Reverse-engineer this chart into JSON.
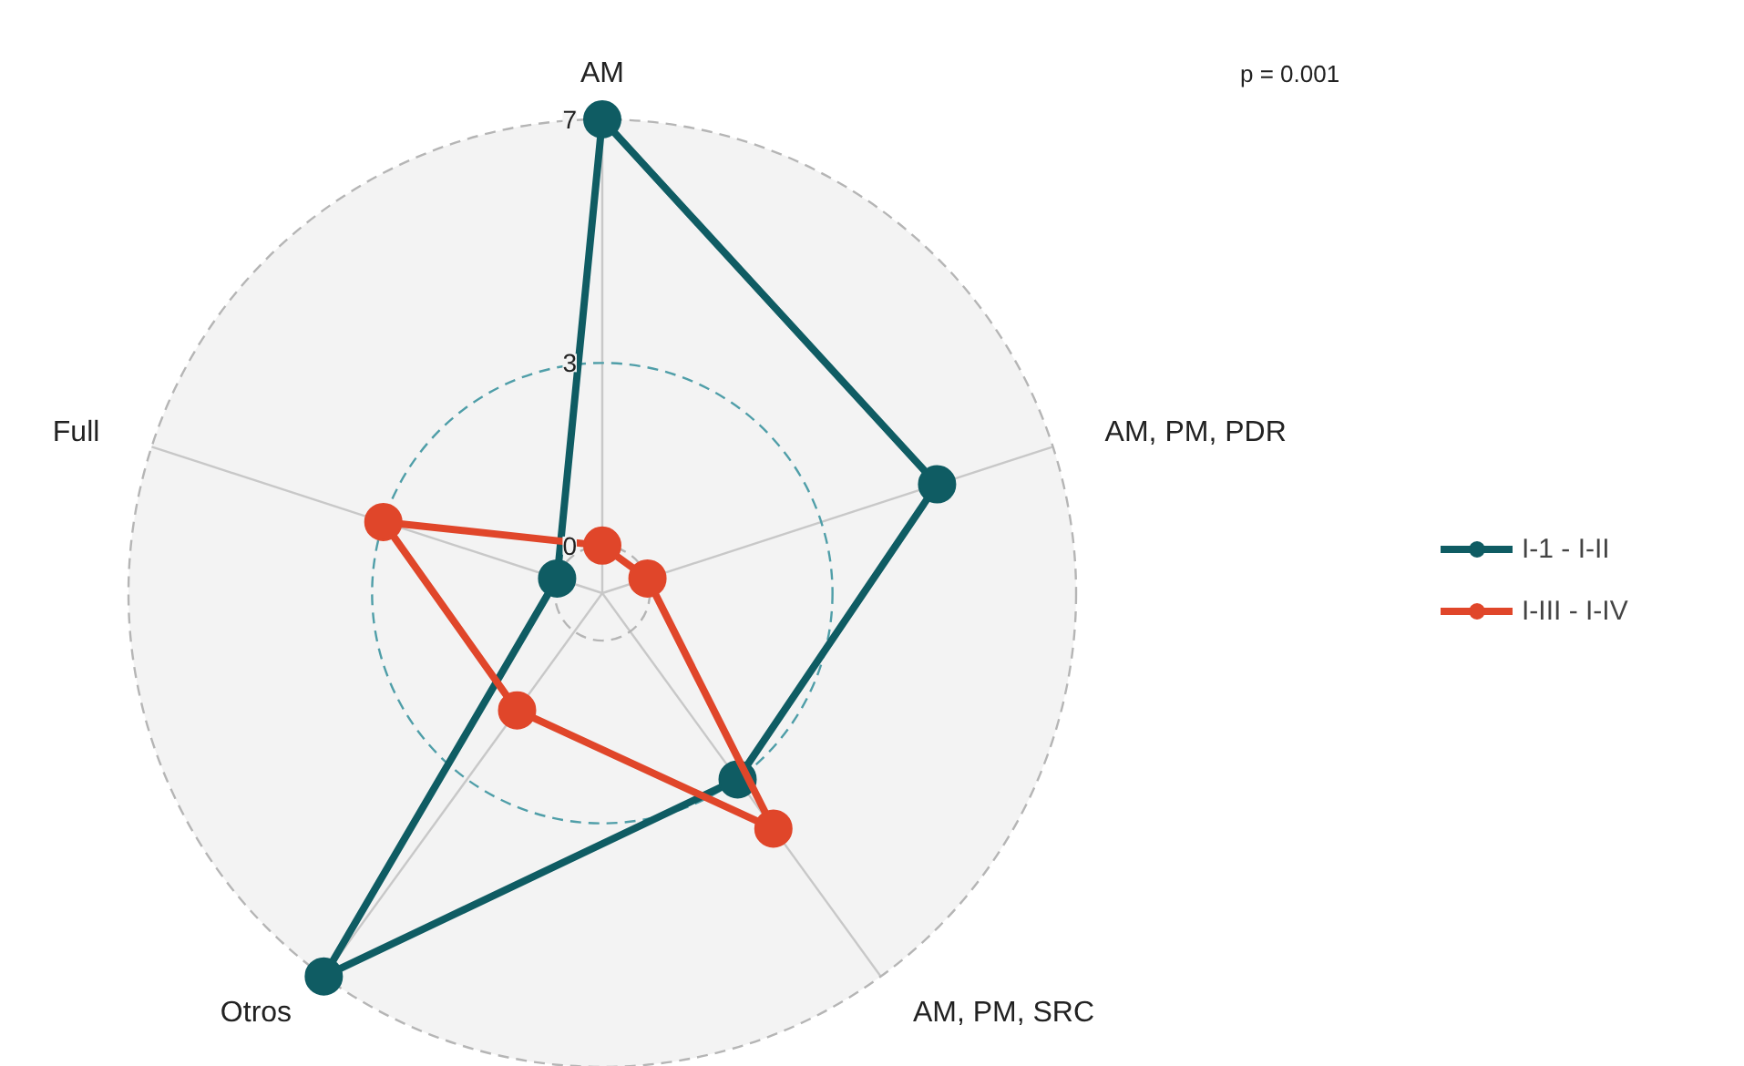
{
  "chart_data": {
    "type": "radar",
    "categories": [
      "AM",
      "AM, PM, PDR",
      "AM, PM, SRC",
      "Otros",
      "Full"
    ],
    "series": [
      {
        "name": "I-1 - I-II",
        "color": "#0f5c63",
        "values": [
          7,
          5,
          3,
          7,
          0
        ]
      },
      {
        "name": "I-III - I-IV",
        "color": "#e0462a",
        "values": [
          0,
          0,
          4,
          1.6,
          3
        ]
      }
    ],
    "ylim": [
      -0.78,
      7
    ],
    "yticks": [
      0,
      3,
      7
    ],
    "grid": true,
    "legend": "right",
    "marker": "circle",
    "line_style": "solid",
    "annotations": [
      "p = 0.001"
    ]
  }
}
